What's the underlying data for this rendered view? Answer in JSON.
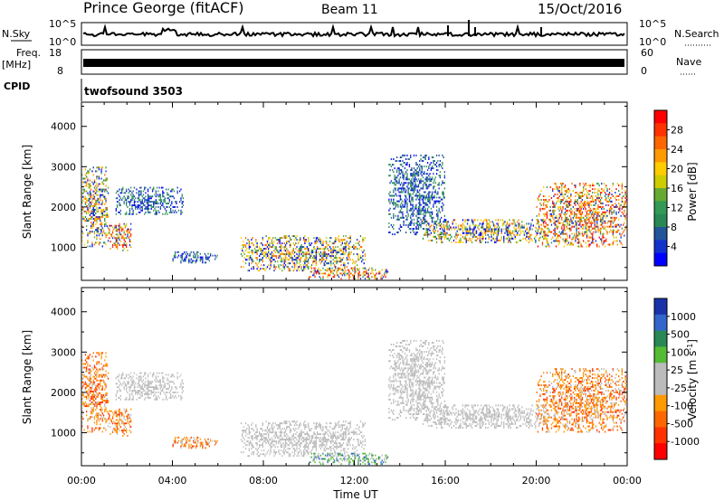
{
  "header": {
    "station": "Prince George (fitACF)",
    "beam": "Beam 11",
    "date": "15/Oct/2016"
  },
  "aux_panels": {
    "nsky_label": "N.Sky",
    "nsky_ticks": [
      "10^5",
      "10^0"
    ],
    "nsearch_label": "N.Search",
    "nsearch_ticks": [
      "10^5",
      "10^0"
    ],
    "freq_label": "Freq.",
    "freq_unit": "[MHz]",
    "freq_ticks": [
      "18",
      "8"
    ],
    "nave_label": "Nave",
    "nave_ticks": [
      "60",
      "0"
    ],
    "cpid_label": "CPID",
    "cpid_value": "twofsound 3503"
  },
  "colorbars": {
    "power": {
      "label": "Power [dB]",
      "ticks": [
        "28",
        "24",
        "20",
        "16",
        "12",
        "8",
        "4"
      ],
      "colors": [
        "#ff0000",
        "#ff3300",
        "#ff6600",
        "#ff9900",
        "#ffcc00",
        "#cccc00",
        "#66aa33",
        "#339955",
        "#2a8855",
        "#225599",
        "#1133cc",
        "#0000ff"
      ]
    },
    "velocity": {
      "label": "Velocity [m s",
      "label_sup": "-1",
      "label_end": "]",
      "ticks": [
        "1000",
        "500",
        "100",
        "25",
        "-25",
        "-100",
        "-500",
        "-1000"
      ],
      "colors": [
        "#1a33aa",
        "#3366cc",
        "#2a8855",
        "#55bb33",
        "#bbbbbb",
        "#bbbbbb",
        "#ff9900",
        "#ff6600",
        "#ff3300",
        "#ff0000"
      ]
    }
  },
  "chart_data": {
    "type": "heatmap",
    "x_ticks": [
      "00:00",
      "04:00",
      "08:00",
      "12:00",
      "16:00",
      "20:00",
      "00:00"
    ],
    "xlabel": "Time UT",
    "ylabel": "Slant Range [km]",
    "y_ticks": [
      "1000",
      "2000",
      "3000",
      "4000"
    ],
    "xlim_hours": [
      0,
      24
    ],
    "ylim_km": [
      180,
      4600
    ],
    "echo_regions": [
      {
        "t0": 0.0,
        "t1": 1.2,
        "r0": 1000,
        "r1": 3000,
        "power": "mixed",
        "velocity": "negative"
      },
      {
        "t0": 1.2,
        "t1": 2.2,
        "r0": 900,
        "r1": 1600,
        "power": "high",
        "velocity": "negative"
      },
      {
        "t0": 1.5,
        "t1": 4.5,
        "r0": 1800,
        "r1": 2500,
        "power": "low",
        "velocity": "near-zero"
      },
      {
        "t0": 4.0,
        "t1": 6.0,
        "r0": 600,
        "r1": 900,
        "power": "low",
        "velocity": "negative"
      },
      {
        "t0": 7.0,
        "t1": 12.5,
        "r0": 400,
        "r1": 1300,
        "power": "mixed",
        "velocity": "near-zero"
      },
      {
        "t0": 10.0,
        "t1": 13.5,
        "r0": 200,
        "r1": 500,
        "power": "high",
        "velocity": "positive"
      },
      {
        "t0": 13.5,
        "t1": 16.0,
        "r0": 1300,
        "r1": 3300,
        "power": "low",
        "velocity": "near-zero"
      },
      {
        "t0": 15.0,
        "t1": 20.5,
        "r0": 1100,
        "r1": 1700,
        "power": "mixed",
        "velocity": "near-zero"
      },
      {
        "t0": 20.0,
        "t1": 24.0,
        "r0": 1000,
        "r1": 2600,
        "power": "high",
        "velocity": "negative"
      }
    ]
  }
}
